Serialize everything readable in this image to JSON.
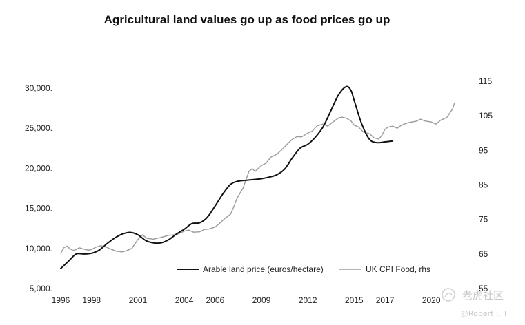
{
  "chart_data": {
    "type": "line",
    "title": "Agricultural land values go up as food prices go up",
    "xlabel": "",
    "ylabel": "",
    "xlim": [
      1996,
      2021.6
    ],
    "x_ticks": [
      1996,
      1998,
      2001,
      2004,
      2006,
      2009,
      2012,
      2015,
      2017,
      2020
    ],
    "x_tick_labels": [
      "1996",
      "1998",
      "2001",
      "2004",
      "2006",
      "2009",
      "2012",
      "2015",
      "2017",
      "2020"
    ],
    "y_left": {
      "range": [
        5000,
        30000
      ],
      "ticks": [
        5000,
        10000,
        15000,
        20000,
        25000,
        30000
      ],
      "tick_labels": [
        "5,000.",
        "10,000.",
        "15,000.",
        "20,000.",
        "25,000.",
        "30,000."
      ]
    },
    "y_right": {
      "range": [
        55,
        115
      ],
      "ticks": [
        55,
        65,
        75,
        85,
        95,
        105,
        115
      ],
      "tick_labels": [
        "55",
        "65",
        "75",
        "85",
        "95",
        "105",
        "115"
      ]
    },
    "legend_position": "bottom-center",
    "series": [
      {
        "name": "Arable land price (euros/hectare)",
        "axis": "left",
        "color": "#111111",
        "x": [
          1996.0,
          1996.5,
          1997.0,
          1997.5,
          1998.0,
          1998.5,
          1999.0,
          1999.5,
          2000.0,
          2000.5,
          2001.0,
          2001.5,
          2002.0,
          2002.5,
          2003.0,
          2003.5,
          2004.0,
          2004.5,
          2005.0,
          2005.5,
          2006.0,
          2006.5,
          2007.0,
          2007.5,
          2008.0,
          2008.5,
          2009.0,
          2009.5,
          2010.0,
          2010.5,
          2011.0,
          2011.5,
          2012.0,
          2012.5,
          2013.0,
          2013.5,
          2014.0,
          2014.5,
          2014.8,
          2015.0,
          2015.5,
          2016.0,
          2016.5,
          2017.0,
          2017.5
        ],
        "y": [
          7500,
          8400,
          9300,
          9300,
          9400,
          9800,
          10600,
          11300,
          11800,
          12000,
          11700,
          11000,
          10700,
          10700,
          11100,
          11800,
          12400,
          13100,
          13200,
          13900,
          15300,
          16800,
          18000,
          18400,
          18500,
          18600,
          18700,
          18900,
          19200,
          19900,
          21300,
          22500,
          23000,
          23900,
          25200,
          27200,
          29200,
          30200,
          29700,
          28500,
          25500,
          23600,
          23200,
          23300,
          23400
        ]
      },
      {
        "name": "UK CPI Food, rhs",
        "axis": "right",
        "color": "#9a9a9a",
        "x": [
          1996.0,
          1996.2,
          1996.4,
          1996.6,
          1996.8,
          1997.0,
          1997.2,
          1997.5,
          1997.8,
          1998.0,
          1998.3,
          1998.6,
          1999.0,
          1999.3,
          1999.6,
          2000.0,
          2000.3,
          2000.6,
          2001.0,
          2001.3,
          2001.6,
          2002.0,
          2002.5,
          2003.0,
          2003.5,
          2004.0,
          2004.3,
          2004.6,
          2005.0,
          2005.3,
          2005.6,
          2006.0,
          2006.3,
          2006.6,
          2007.0,
          2007.2,
          2007.4,
          2007.6,
          2007.8,
          2008.0,
          2008.2,
          2008.4,
          2008.6,
          2008.8,
          2009.0,
          2009.3,
          2009.6,
          2010.0,
          2010.3,
          2010.6,
          2011.0,
          2011.3,
          2011.6,
          2012.0,
          2012.3,
          2012.6,
          2013.0,
          2013.3,
          2013.6,
          2014.0,
          2014.2,
          2014.5,
          2014.8,
          2015.0,
          2015.3,
          2015.6,
          2016.0,
          2016.3,
          2016.6,
          2016.8,
          2017.0,
          2017.2,
          2017.5,
          2017.8,
          2018.0,
          2018.3,
          2018.6,
          2019.0,
          2019.3,
          2019.6,
          2020.0,
          2020.3,
          2020.6,
          2021.0,
          2021.2,
          2021.4,
          2021.5
        ],
        "y": [
          65.2,
          66.8,
          67.3,
          66.5,
          66.0,
          66.3,
          66.8,
          66.4,
          66.1,
          66.3,
          67.0,
          67.4,
          66.9,
          66.3,
          65.8,
          65.6,
          66.0,
          66.6,
          69.2,
          70.5,
          69.5,
          69.3,
          69.8,
          70.4,
          70.6,
          71.6,
          71.9,
          71.3,
          71.4,
          72.1,
          72.2,
          72.8,
          73.9,
          75.2,
          76.5,
          78.6,
          81.0,
          82.5,
          84.0,
          86.5,
          89.0,
          89.7,
          88.9,
          89.8,
          90.6,
          91.3,
          93.0,
          93.9,
          95.1,
          96.5,
          98.2,
          99.0,
          98.9,
          100.0,
          100.6,
          102.1,
          102.6,
          102.0,
          103.1,
          104.4,
          104.6,
          104.3,
          103.5,
          102.3,
          101.7,
          100.3,
          99.8,
          98.6,
          98.3,
          99.4,
          101.1,
          101.7,
          102.0,
          101.4,
          102.1,
          102.7,
          103.1,
          103.4,
          104.0,
          103.5,
          103.2,
          102.6,
          103.7,
          104.5,
          105.8,
          107.2,
          108.7
        ]
      }
    ]
  },
  "watermark": {
    "brand": "老虎社区",
    "author": "@Robert J. T"
  }
}
